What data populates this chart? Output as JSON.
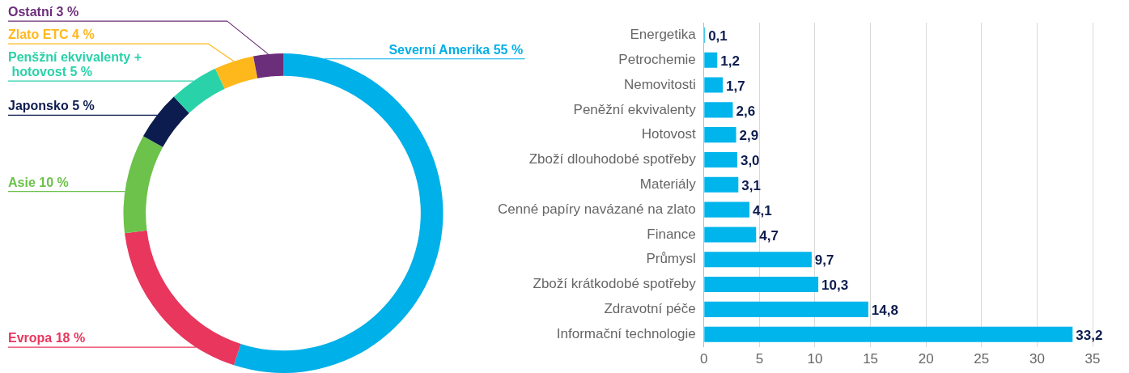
{
  "chart_data": [
    {
      "type": "donut",
      "categories": [
        "Severní Amerika",
        "Evropa",
        "Asie",
        "Japonsko",
        "Penšžní ekvivalenty + hotovost",
        "Zlato ETC",
        "Ostatní"
      ],
      "values": [
        55,
        18,
        10,
        5,
        5,
        4,
        3
      ],
      "value_labels": [
        "55 %",
        "18 %",
        "10 %",
        "5 %",
        "5 %",
        "4 %",
        "3 %"
      ],
      "colors": [
        "#00b0e8",
        "#e8365d",
        "#6cc24a",
        "#0d1c4f",
        "#2ad2a9",
        "#ffb81c",
        "#6b2e7a"
      ]
    },
    {
      "type": "bar",
      "orientation": "horizontal",
      "categories": [
        "Energetika",
        "Petrochemie",
        "Nemovitosti",
        "Peněžní ekvivalenty",
        "Hotovost",
        "Zboží dlouhodobé spotřeby",
        "Materiály",
        "Cenné papíry navázané na zlato",
        "Finance",
        "Průmysl",
        "Zboží krátkodobé spotřeby",
        "Zdravotní péče",
        "Informační technologie"
      ],
      "values": [
        0.1,
        1.2,
        1.7,
        2.6,
        2.9,
        3.0,
        3.1,
        4.1,
        4.7,
        9.7,
        10.3,
        14.8,
        33.2
      ],
      "value_labels": [
        "0,1",
        "1,2",
        "1,7",
        "2,6",
        "2,9",
        "3,0",
        "3,1",
        "4,1",
        "4,7",
        "9,7",
        "10,3",
        "14,8",
        "33,2"
      ],
      "color": "#00b5eb",
      "xlim": [
        0,
        35
      ],
      "xticks": [
        0,
        5,
        10,
        15,
        20,
        25,
        30,
        35
      ],
      "grid": "x"
    }
  ]
}
